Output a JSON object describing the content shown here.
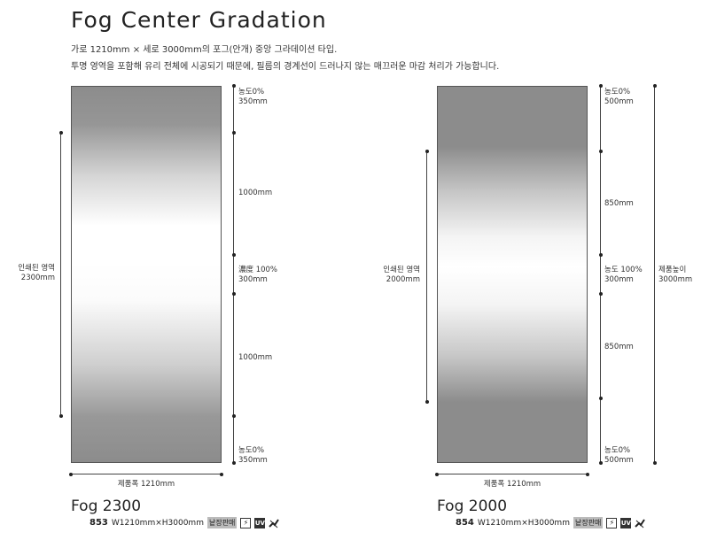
{
  "page": {
    "title": "Fog Center Gradation",
    "desc1": "가로 1210mm × 세로 3000mm의 포그(안개) 중앙 그라데이션 타입.",
    "desc2": "투명 영역을 포함해 유리 전체에 시공되기 때문에, 필름의 경계선이 드러나지 않는 매끄러운 마감 처리가 가능합니다."
  },
  "left": {
    "model": "Fog 2300",
    "code": "853",
    "size": "W1210mm×H3000mm",
    "badge": "낱장판매",
    "width_label": "제품폭 1210mm",
    "printed_label_1": "인쇄된 영역",
    "printed_label_2": "2300mm",
    "top_density": "농도0%",
    "top_length": "350mm",
    "upper_length": "1000mm",
    "mid_density": "濃度 100%",
    "mid_length": "300mm",
    "lower_length": "1000mm",
    "bottom_density": "농도0%",
    "bottom_length": "350mm"
  },
  "right": {
    "model": "Fog 2000",
    "code": "854",
    "size": "W1210mm×H3000mm",
    "badge": "낱장판매",
    "width_label": "제품폭 1210mm",
    "printed_label_1": "인쇄된 영역",
    "printed_label_2": "2000mm",
    "height_label_1": "제품높이",
    "height_label_2": "3000mm",
    "top_density": "농도0%",
    "top_length": "500mm",
    "upper_length": "850mm",
    "mid_density": "농도 100%",
    "mid_length": "300mm",
    "lower_length": "850mm",
    "bottom_density": "농도0%",
    "bottom_length": "500mm"
  },
  "icons": {
    "uv_label": "UV",
    "flash": "flash-icon",
    "uv": "uv-icon",
    "wipe": "no-scratch-icon"
  },
  "colors": {
    "fog_dark": "#8c8c8c",
    "clear": "#ffffff"
  }
}
